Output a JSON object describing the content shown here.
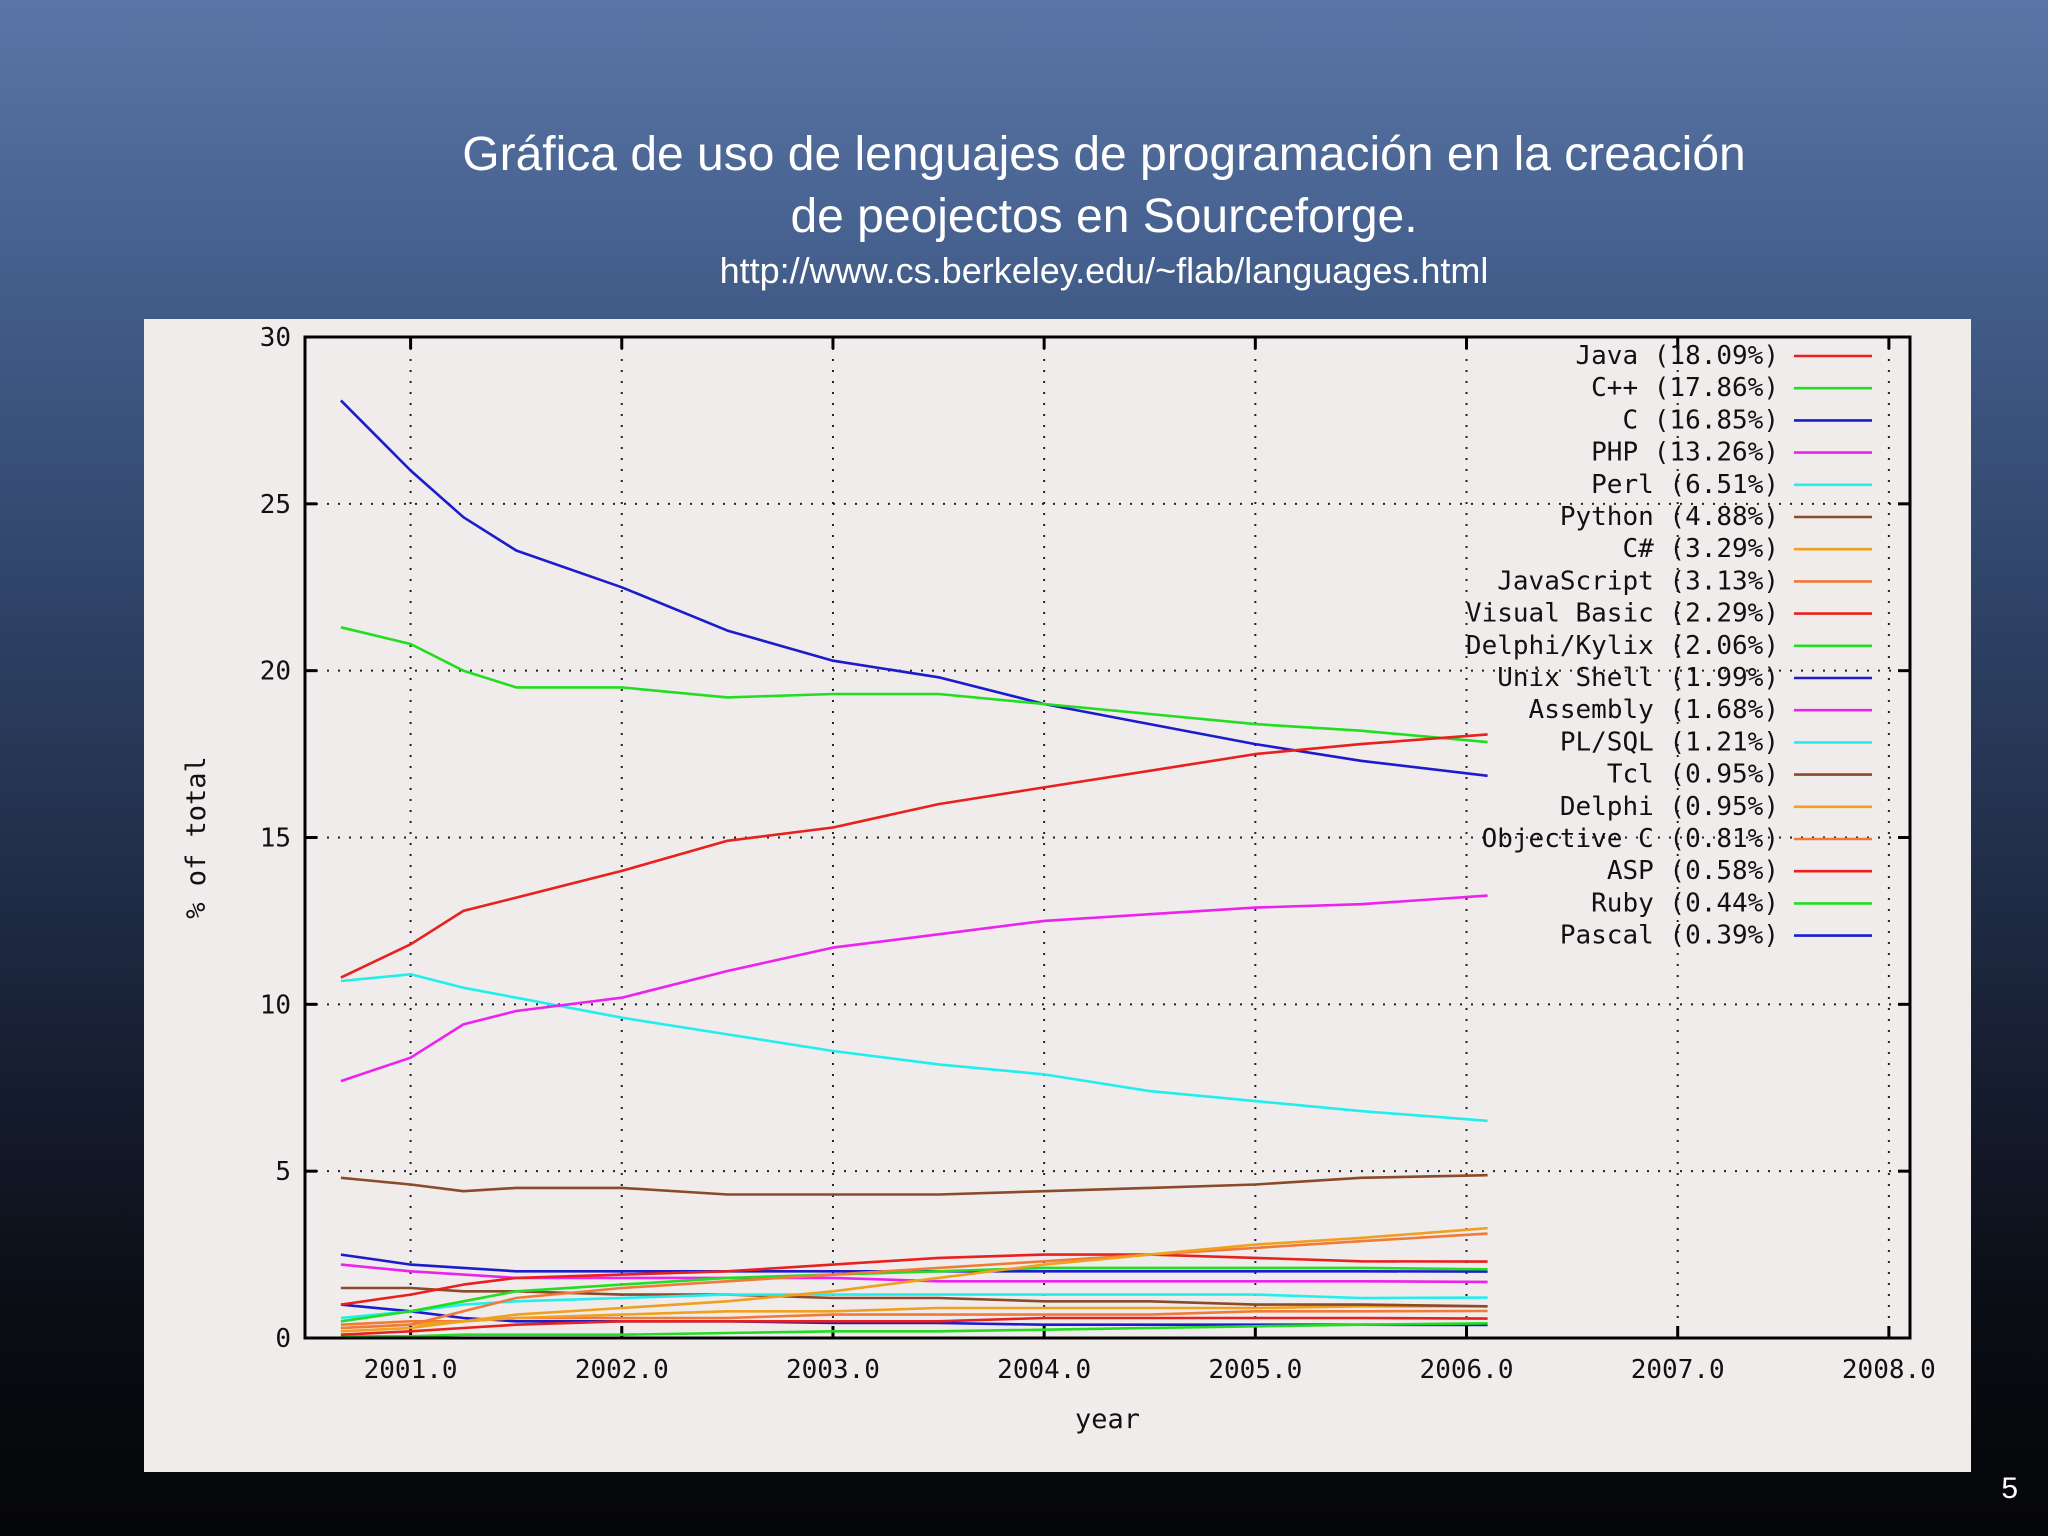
{
  "slide": {
    "title_line1": "Gráfica de uso de lenguajes de programación  en la creación",
    "title_line2": "de peojectos en Sourceforge.",
    "url": "http://www.cs.berkeley.edu/~flab/languages.html",
    "page_number": "5"
  },
  "chart_data": {
    "type": "line",
    "title": "",
    "xlabel": "year",
    "ylabel": "% of total",
    "xlim": [
      2000.5,
      2008.1
    ],
    "ylim": [
      0,
      30
    ],
    "xticks": [
      {
        "value": 2001,
        "label": "2001.0"
      },
      {
        "value": 2002,
        "label": "2002.0"
      },
      {
        "value": 2003,
        "label": "2003.0"
      },
      {
        "value": 2004,
        "label": "2004.0"
      },
      {
        "value": 2005,
        "label": "2005.0"
      },
      {
        "value": 2006,
        "label": "2006.0"
      },
      {
        "value": 2007,
        "label": "2007.0"
      },
      {
        "value": 2008,
        "label": "2008.0"
      }
    ],
    "yticks": [
      {
        "value": 0,
        "label": "0"
      },
      {
        "value": 5,
        "label": "5"
      },
      {
        "value": 10,
        "label": "10"
      },
      {
        "value": 15,
        "label": "15"
      },
      {
        "value": 20,
        "label": "20"
      },
      {
        "value": 25,
        "label": "25"
      },
      {
        "value": 30,
        "label": "30"
      }
    ],
    "grid": true,
    "legend_position": "top-right",
    "x": [
      2000.67,
      2001.0,
      2001.25,
      2001.5,
      2002.0,
      2002.5,
      2003.0,
      2003.5,
      2004.0,
      2004.5,
      2005.0,
      2005.5,
      2006.1
    ],
    "series": [
      {
        "name": "Java (18.09%)",
        "color": "#e8201e",
        "values": [
          10.8,
          11.8,
          12.8,
          13.2,
          14.0,
          14.9,
          15.3,
          16.0,
          16.5,
          17.0,
          17.5,
          17.8,
          18.09
        ]
      },
      {
        "name": "C++ (17.86%)",
        "color": "#22dd22",
        "values": [
          21.3,
          20.8,
          20.0,
          19.5,
          19.5,
          19.2,
          19.3,
          19.3,
          19.0,
          18.7,
          18.4,
          18.2,
          17.86
        ]
      },
      {
        "name": "C (16.85%)",
        "color": "#1c1ccc",
        "values": [
          28.1,
          26.0,
          24.6,
          23.6,
          22.5,
          21.2,
          20.3,
          19.8,
          19.0,
          18.4,
          17.8,
          17.3,
          16.85
        ]
      },
      {
        "name": "PHP (13.26%)",
        "color": "#ee22ee",
        "values": [
          7.7,
          8.4,
          9.4,
          9.8,
          10.2,
          11.0,
          11.7,
          12.1,
          12.5,
          12.7,
          12.9,
          13.0,
          13.26
        ]
      },
      {
        "name": "Perl (6.51%)",
        "color": "#22eeee",
        "values": [
          10.7,
          10.9,
          10.5,
          10.2,
          9.6,
          9.1,
          8.6,
          8.2,
          7.9,
          7.4,
          7.1,
          6.8,
          6.51
        ]
      },
      {
        "name": "Python (4.88%)",
        "color": "#8b4a2a",
        "values": [
          4.8,
          4.6,
          4.4,
          4.5,
          4.5,
          4.3,
          4.3,
          4.3,
          4.4,
          4.5,
          4.6,
          4.8,
          4.88
        ]
      },
      {
        "name": "C# (3.29%)",
        "color": "#f0a020",
        "values": [
          0.2,
          0.3,
          0.5,
          0.7,
          0.9,
          1.1,
          1.4,
          1.8,
          2.2,
          2.5,
          2.8,
          3.0,
          3.29
        ]
      },
      {
        "name": "JavaScript (3.13%)",
        "color": "#f07a3a",
        "values": [
          0.3,
          0.4,
          0.8,
          1.2,
          1.5,
          1.7,
          1.9,
          2.1,
          2.3,
          2.5,
          2.7,
          2.9,
          3.13
        ]
      },
      {
        "name": "Visual Basic (2.29%)",
        "color": "#e8201e",
        "values": [
          1.0,
          1.3,
          1.6,
          1.8,
          1.9,
          2.0,
          2.2,
          2.4,
          2.5,
          2.5,
          2.4,
          2.3,
          2.29
        ]
      },
      {
        "name": "Delphi/Kylix (2.06%)",
        "color": "#22dd22",
        "values": [
          0.5,
          0.8,
          1.1,
          1.4,
          1.6,
          1.8,
          1.9,
          2.0,
          2.1,
          2.1,
          2.1,
          2.1,
          2.06
        ]
      },
      {
        "name": "Unix Shell (1.99%)",
        "color": "#1c1ccc",
        "values": [
          2.5,
          2.2,
          2.1,
          2.0,
          2.0,
          2.0,
          2.0,
          2.0,
          2.0,
          2.0,
          2.0,
          2.0,
          1.99
        ]
      },
      {
        "name": "Assembly (1.68%)",
        "color": "#ee22ee",
        "values": [
          2.2,
          2.0,
          1.9,
          1.8,
          1.8,
          1.8,
          1.8,
          1.7,
          1.7,
          1.7,
          1.7,
          1.7,
          1.68
        ]
      },
      {
        "name": "PL/SQL (1.21%)",
        "color": "#22eeee",
        "values": [
          0.6,
          0.8,
          1.0,
          1.1,
          1.2,
          1.3,
          1.3,
          1.3,
          1.3,
          1.3,
          1.3,
          1.2,
          1.21
        ]
      },
      {
        "name": "Tcl (0.95%)",
        "color": "#8b4a2a",
        "values": [
          1.5,
          1.5,
          1.4,
          1.4,
          1.3,
          1.3,
          1.2,
          1.2,
          1.1,
          1.1,
          1.0,
          1.0,
          0.95
        ]
      },
      {
        "name": "Delphi (0.95%)",
        "color": "#f0a020",
        "values": [
          0.3,
          0.4,
          0.5,
          0.6,
          0.7,
          0.8,
          0.8,
          0.9,
          0.9,
          0.9,
          0.9,
          0.95,
          0.95
        ]
      },
      {
        "name": "Objective C (0.81%)",
        "color": "#f07a3a",
        "values": [
          0.4,
          0.5,
          0.5,
          0.6,
          0.6,
          0.6,
          0.7,
          0.7,
          0.7,
          0.7,
          0.8,
          0.8,
          0.81
        ]
      },
      {
        "name": "ASP (0.58%)",
        "color": "#e8201e",
        "values": [
          0.1,
          0.2,
          0.3,
          0.4,
          0.5,
          0.5,
          0.5,
          0.5,
          0.6,
          0.6,
          0.6,
          0.6,
          0.58
        ]
      },
      {
        "name": "Ruby (0.44%)",
        "color": "#22dd22",
        "values": [
          0.05,
          0.05,
          0.1,
          0.1,
          0.1,
          0.15,
          0.2,
          0.2,
          0.25,
          0.3,
          0.35,
          0.4,
          0.44
        ]
      },
      {
        "name": "Pascal (0.39%)",
        "color": "#1c1ccc",
        "values": [
          1.0,
          0.8,
          0.6,
          0.5,
          0.5,
          0.5,
          0.45,
          0.45,
          0.4,
          0.4,
          0.4,
          0.4,
          0.39
        ]
      }
    ]
  }
}
